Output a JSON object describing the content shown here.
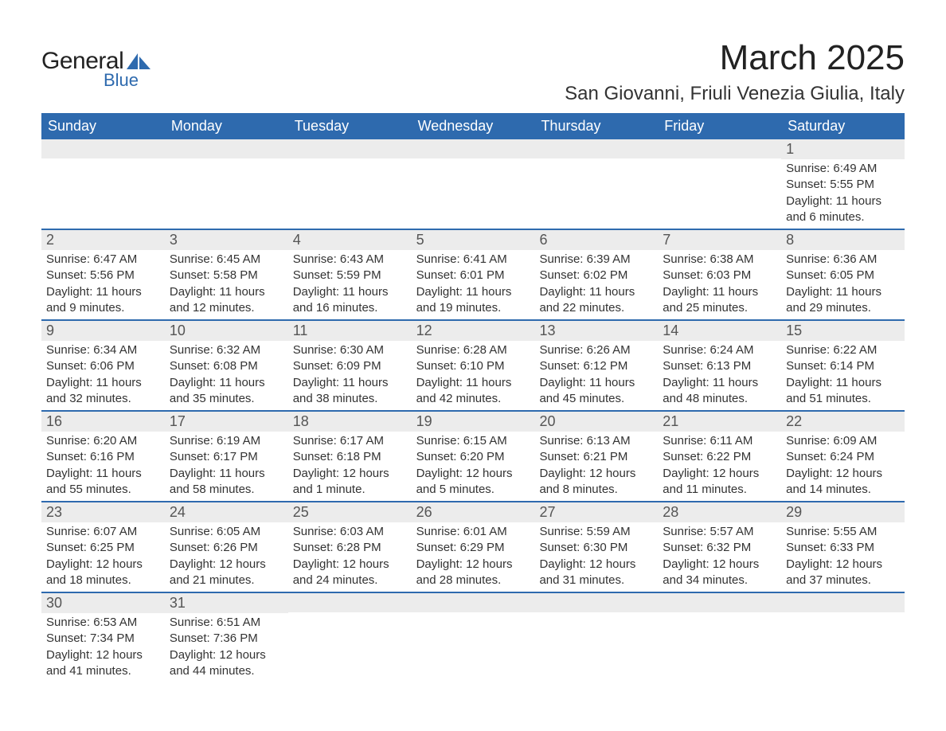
{
  "brand": {
    "word1": "General",
    "word2": "Blue",
    "logo_color": "#2e6aae",
    "text_color": "#222222"
  },
  "title": "March 2025",
  "location": "San Giovanni, Friuli Venezia Giulia, Italy",
  "colors": {
    "header_bg": "#2e6aae",
    "header_text": "#ffffff",
    "daynum_bg": "#ececec",
    "week_divider": "#2e6aae",
    "body_text": "#333333"
  },
  "weekdays": [
    "Sunday",
    "Monday",
    "Tuesday",
    "Wednesday",
    "Thursday",
    "Friday",
    "Saturday"
  ],
  "weeks": [
    [
      {
        "day": "",
        "sunrise": "",
        "sunset": "",
        "daylight": ""
      },
      {
        "day": "",
        "sunrise": "",
        "sunset": "",
        "daylight": ""
      },
      {
        "day": "",
        "sunrise": "",
        "sunset": "",
        "daylight": ""
      },
      {
        "day": "",
        "sunrise": "",
        "sunset": "",
        "daylight": ""
      },
      {
        "day": "",
        "sunrise": "",
        "sunset": "",
        "daylight": ""
      },
      {
        "day": "",
        "sunrise": "",
        "sunset": "",
        "daylight": ""
      },
      {
        "day": "1",
        "sunrise": "Sunrise: 6:49 AM",
        "sunset": "Sunset: 5:55 PM",
        "daylight": "Daylight: 11 hours and 6 minutes."
      }
    ],
    [
      {
        "day": "2",
        "sunrise": "Sunrise: 6:47 AM",
        "sunset": "Sunset: 5:56 PM",
        "daylight": "Daylight: 11 hours and 9 minutes."
      },
      {
        "day": "3",
        "sunrise": "Sunrise: 6:45 AM",
        "sunset": "Sunset: 5:58 PM",
        "daylight": "Daylight: 11 hours and 12 minutes."
      },
      {
        "day": "4",
        "sunrise": "Sunrise: 6:43 AM",
        "sunset": "Sunset: 5:59 PM",
        "daylight": "Daylight: 11 hours and 16 minutes."
      },
      {
        "day": "5",
        "sunrise": "Sunrise: 6:41 AM",
        "sunset": "Sunset: 6:01 PM",
        "daylight": "Daylight: 11 hours and 19 minutes."
      },
      {
        "day": "6",
        "sunrise": "Sunrise: 6:39 AM",
        "sunset": "Sunset: 6:02 PM",
        "daylight": "Daylight: 11 hours and 22 minutes."
      },
      {
        "day": "7",
        "sunrise": "Sunrise: 6:38 AM",
        "sunset": "Sunset: 6:03 PM",
        "daylight": "Daylight: 11 hours and 25 minutes."
      },
      {
        "day": "8",
        "sunrise": "Sunrise: 6:36 AM",
        "sunset": "Sunset: 6:05 PM",
        "daylight": "Daylight: 11 hours and 29 minutes."
      }
    ],
    [
      {
        "day": "9",
        "sunrise": "Sunrise: 6:34 AM",
        "sunset": "Sunset: 6:06 PM",
        "daylight": "Daylight: 11 hours and 32 minutes."
      },
      {
        "day": "10",
        "sunrise": "Sunrise: 6:32 AM",
        "sunset": "Sunset: 6:08 PM",
        "daylight": "Daylight: 11 hours and 35 minutes."
      },
      {
        "day": "11",
        "sunrise": "Sunrise: 6:30 AM",
        "sunset": "Sunset: 6:09 PM",
        "daylight": "Daylight: 11 hours and 38 minutes."
      },
      {
        "day": "12",
        "sunrise": "Sunrise: 6:28 AM",
        "sunset": "Sunset: 6:10 PM",
        "daylight": "Daylight: 11 hours and 42 minutes."
      },
      {
        "day": "13",
        "sunrise": "Sunrise: 6:26 AM",
        "sunset": "Sunset: 6:12 PM",
        "daylight": "Daylight: 11 hours and 45 minutes."
      },
      {
        "day": "14",
        "sunrise": "Sunrise: 6:24 AM",
        "sunset": "Sunset: 6:13 PM",
        "daylight": "Daylight: 11 hours and 48 minutes."
      },
      {
        "day": "15",
        "sunrise": "Sunrise: 6:22 AM",
        "sunset": "Sunset: 6:14 PM",
        "daylight": "Daylight: 11 hours and 51 minutes."
      }
    ],
    [
      {
        "day": "16",
        "sunrise": "Sunrise: 6:20 AM",
        "sunset": "Sunset: 6:16 PM",
        "daylight": "Daylight: 11 hours and 55 minutes."
      },
      {
        "day": "17",
        "sunrise": "Sunrise: 6:19 AM",
        "sunset": "Sunset: 6:17 PM",
        "daylight": "Daylight: 11 hours and 58 minutes."
      },
      {
        "day": "18",
        "sunrise": "Sunrise: 6:17 AM",
        "sunset": "Sunset: 6:18 PM",
        "daylight": "Daylight: 12 hours and 1 minute."
      },
      {
        "day": "19",
        "sunrise": "Sunrise: 6:15 AM",
        "sunset": "Sunset: 6:20 PM",
        "daylight": "Daylight: 12 hours and 5 minutes."
      },
      {
        "day": "20",
        "sunrise": "Sunrise: 6:13 AM",
        "sunset": "Sunset: 6:21 PM",
        "daylight": "Daylight: 12 hours and 8 minutes."
      },
      {
        "day": "21",
        "sunrise": "Sunrise: 6:11 AM",
        "sunset": "Sunset: 6:22 PM",
        "daylight": "Daylight: 12 hours and 11 minutes."
      },
      {
        "day": "22",
        "sunrise": "Sunrise: 6:09 AM",
        "sunset": "Sunset: 6:24 PM",
        "daylight": "Daylight: 12 hours and 14 minutes."
      }
    ],
    [
      {
        "day": "23",
        "sunrise": "Sunrise: 6:07 AM",
        "sunset": "Sunset: 6:25 PM",
        "daylight": "Daylight: 12 hours and 18 minutes."
      },
      {
        "day": "24",
        "sunrise": "Sunrise: 6:05 AM",
        "sunset": "Sunset: 6:26 PM",
        "daylight": "Daylight: 12 hours and 21 minutes."
      },
      {
        "day": "25",
        "sunrise": "Sunrise: 6:03 AM",
        "sunset": "Sunset: 6:28 PM",
        "daylight": "Daylight: 12 hours and 24 minutes."
      },
      {
        "day": "26",
        "sunrise": "Sunrise: 6:01 AM",
        "sunset": "Sunset: 6:29 PM",
        "daylight": "Daylight: 12 hours and 28 minutes."
      },
      {
        "day": "27",
        "sunrise": "Sunrise: 5:59 AM",
        "sunset": "Sunset: 6:30 PM",
        "daylight": "Daylight: 12 hours and 31 minutes."
      },
      {
        "day": "28",
        "sunrise": "Sunrise: 5:57 AM",
        "sunset": "Sunset: 6:32 PM",
        "daylight": "Daylight: 12 hours and 34 minutes."
      },
      {
        "day": "29",
        "sunrise": "Sunrise: 5:55 AM",
        "sunset": "Sunset: 6:33 PM",
        "daylight": "Daylight: 12 hours and 37 minutes."
      }
    ],
    [
      {
        "day": "30",
        "sunrise": "Sunrise: 6:53 AM",
        "sunset": "Sunset: 7:34 PM",
        "daylight": "Daylight: 12 hours and 41 minutes."
      },
      {
        "day": "31",
        "sunrise": "Sunrise: 6:51 AM",
        "sunset": "Sunset: 7:36 PM",
        "daylight": "Daylight: 12 hours and 44 minutes."
      },
      {
        "day": "",
        "sunrise": "",
        "sunset": "",
        "daylight": ""
      },
      {
        "day": "",
        "sunrise": "",
        "sunset": "",
        "daylight": ""
      },
      {
        "day": "",
        "sunrise": "",
        "sunset": "",
        "daylight": ""
      },
      {
        "day": "",
        "sunrise": "",
        "sunset": "",
        "daylight": ""
      },
      {
        "day": "",
        "sunrise": "",
        "sunset": "",
        "daylight": ""
      }
    ]
  ]
}
